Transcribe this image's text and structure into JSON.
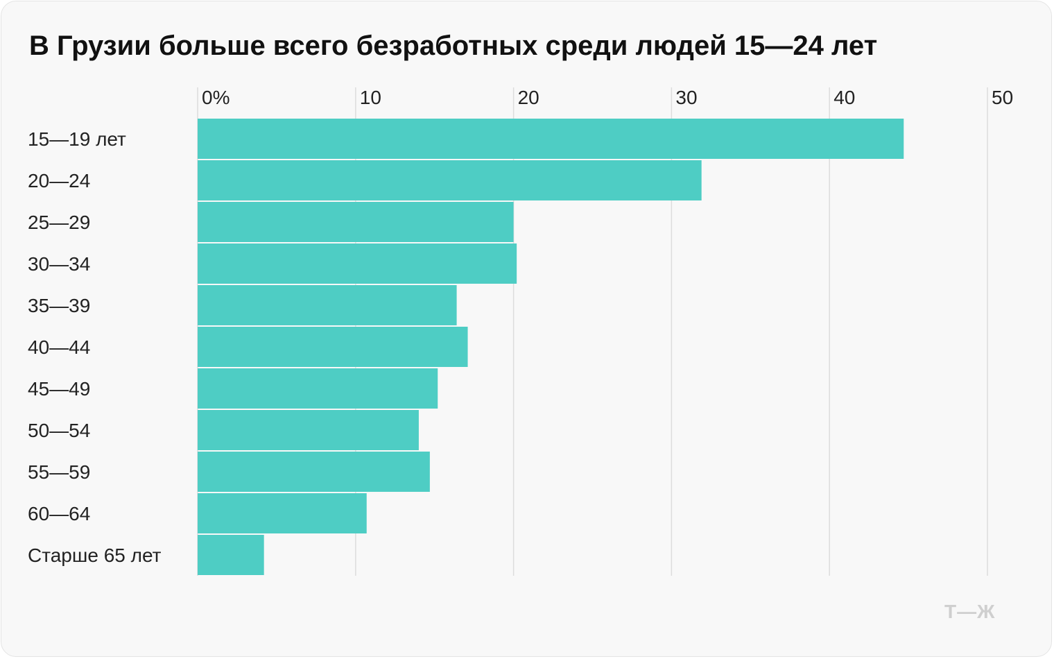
{
  "chart_data": {
    "type": "bar",
    "orientation": "horizontal",
    "title": "В Грузии больше всего безработных среди людей 15—24 лет",
    "categories": [
      "15—19 лет",
      "20—24",
      "25—29",
      "30—34",
      "35—39",
      "40—44",
      "45—49",
      "50—54",
      "55—59",
      "60—64",
      "Старше 65 лет"
    ],
    "values": [
      44.7,
      31.9,
      20.0,
      20.2,
      16.4,
      17.1,
      15.2,
      14.0,
      14.7,
      10.7,
      4.2
    ],
    "xlim": [
      0,
      50
    ],
    "xticks": [
      0,
      10,
      20,
      30,
      40,
      50
    ],
    "xtick_labels": [
      "0%",
      "10",
      "20",
      "30",
      "40",
      "50"
    ],
    "grid": true,
    "bar_color": "#4ecdc4"
  },
  "branding": {
    "logo_text": "Т—Ж"
  }
}
